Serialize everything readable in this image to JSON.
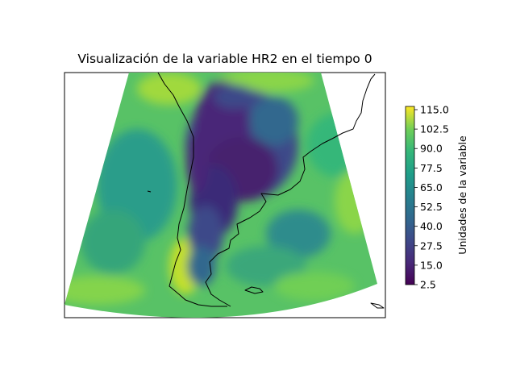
{
  "title": "Visualización de la variable HR2 en el tiempo 0",
  "colorbar": {
    "label": "Unidades de la variable",
    "ticks": [
      "115.0",
      "102.5",
      "90.0",
      "77.5",
      "65.0",
      "52.5",
      "40.0",
      "27.5",
      "15.0",
      "2.5"
    ],
    "min": 2.5,
    "max": 115.0,
    "colormap": "viridis"
  },
  "colors": {
    "very_low": "#440154",
    "low": "#3b528b",
    "mid": "#21908d",
    "mid_high": "#35a57a",
    "high": "#5ec962",
    "very_high": "#a8db34",
    "max": "#fde725",
    "coast": "#000000"
  }
}
